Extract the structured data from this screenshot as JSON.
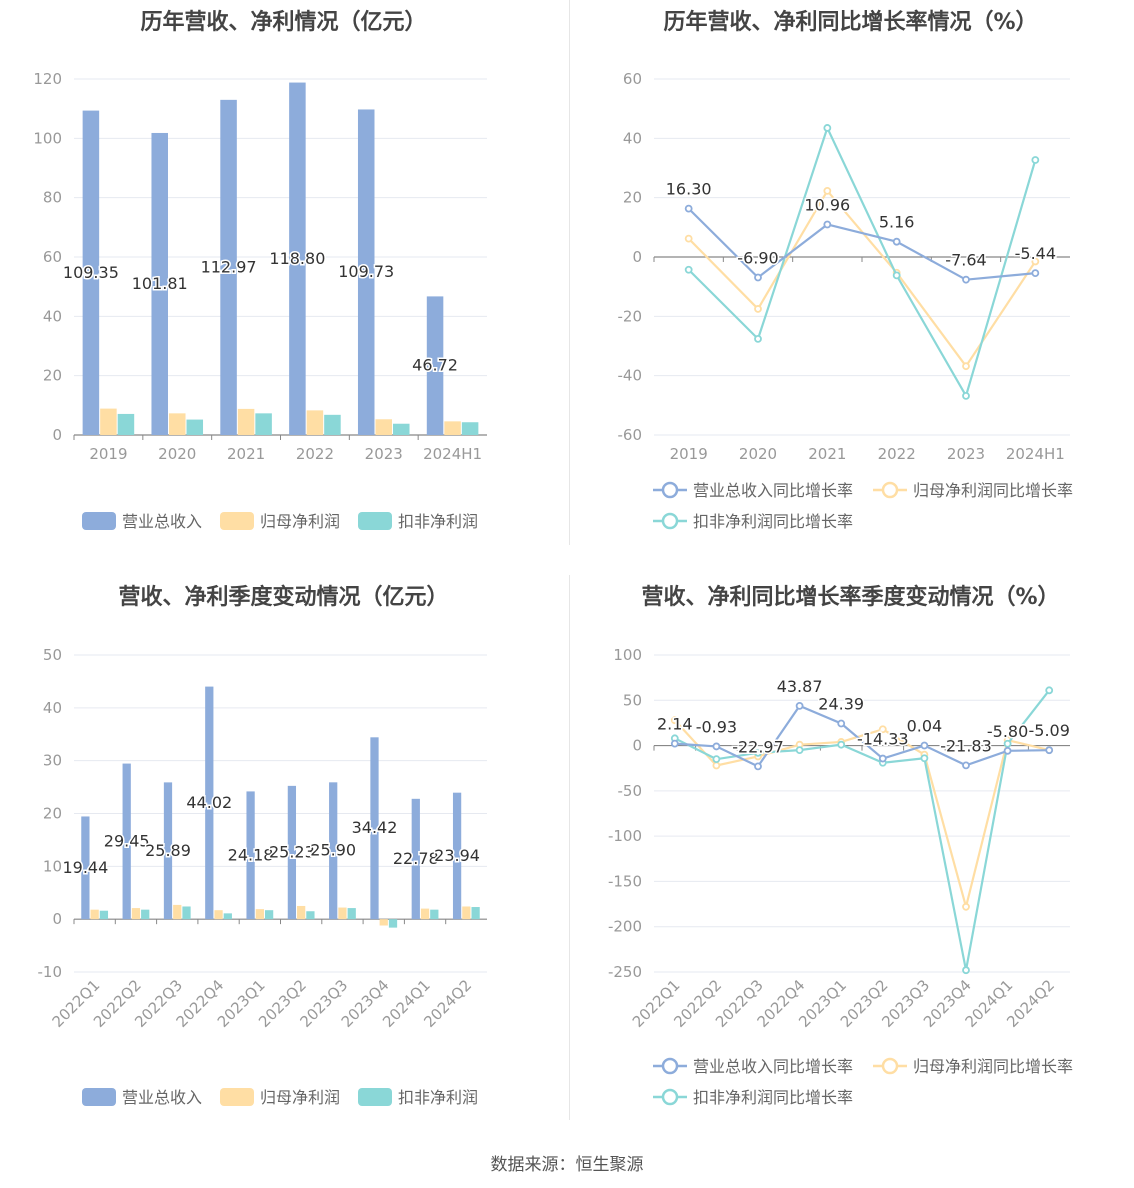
{
  "source_text": "数据来源：恒生聚源",
  "colors": {
    "revenue": "#8dacdb",
    "net_profit": "#ffdea4",
    "deducted": "#8ad7d7",
    "axis": "#999999",
    "grid": "#e6e9f0",
    "label": "#333333",
    "title": "#444444"
  },
  "chart_data": [
    {
      "type": "bar",
      "title": "历年营收、净利情况（亿元）",
      "categories": [
        "2019",
        "2020",
        "2021",
        "2022",
        "2023",
        "2024H1"
      ],
      "ylim": [
        0,
        120
      ],
      "yticks": [
        0,
        20,
        40,
        60,
        80,
        100,
        120
      ],
      "series": [
        {
          "name": "营业总收入",
          "values": [
            109.35,
            101.81,
            112.97,
            118.8,
            109.73,
            46.72
          ],
          "color": "#8dacdb",
          "show_labels": true
        },
        {
          "name": "归母净利润",
          "values": [
            8.9,
            7.3,
            8.8,
            8.3,
            5.3,
            4.6
          ],
          "color": "#ffdea4",
          "show_labels": false
        },
        {
          "name": "扣非净利润",
          "values": [
            7.1,
            5.2,
            7.3,
            6.8,
            3.8,
            4.3
          ],
          "color": "#8ad7d7",
          "show_labels": false
        }
      ],
      "legend": "bottom",
      "grid": true
    },
    {
      "type": "line",
      "title": "历年营收、净利同比增长率情况（%）",
      "categories": [
        "2019",
        "2020",
        "2021",
        "2022",
        "2023",
        "2024H1"
      ],
      "ylim": [
        -60,
        60
      ],
      "yticks": [
        -60,
        -40,
        -20,
        0,
        20,
        40,
        60
      ],
      "series": [
        {
          "name": "营业总收入同比增长率",
          "values": [
            16.3,
            -6.9,
            10.96,
            5.16,
            -7.64,
            -5.44
          ],
          "labels": [
            "16.30",
            "-6.90",
            "10.96",
            "5.16",
            "-7.64",
            "-5.44"
          ],
          "color": "#8dacdb",
          "show_labels": true
        },
        {
          "name": "归母净利润同比增长率",
          "values": [
            6.2,
            -17.5,
            22.3,
            -5.3,
            -36.8,
            -1.5
          ],
          "color": "#ffdea4",
          "show_labels": false
        },
        {
          "name": "扣非净利润同比增长率",
          "values": [
            -4.3,
            -27.6,
            43.5,
            -6.2,
            -46.8,
            32.7
          ],
          "color": "#8ad7d7",
          "show_labels": false
        }
      ],
      "legend": "bottom",
      "grid": true
    },
    {
      "type": "bar",
      "title": "营收、净利季度变动情况（亿元）",
      "categories": [
        "2022Q1",
        "2022Q2",
        "2022Q3",
        "2022Q4",
        "2023Q1",
        "2023Q2",
        "2023Q3",
        "2023Q4",
        "2024Q1",
        "2024Q2"
      ],
      "ylim": [
        -10,
        50
      ],
      "yticks": [
        -10,
        0,
        10,
        20,
        30,
        40,
        50
      ],
      "series": [
        {
          "name": "营业总收入",
          "values": [
            19.44,
            29.45,
            25.89,
            44.02,
            24.18,
            25.23,
            25.9,
            34.42,
            22.78,
            23.94
          ],
          "color": "#8dacdb",
          "show_labels": true
        },
        {
          "name": "归母净利润",
          "values": [
            1.8,
            2.1,
            2.7,
            1.7,
            1.9,
            2.5,
            2.2,
            -1.2,
            2.0,
            2.4
          ],
          "color": "#ffdea4",
          "show_labels": false
        },
        {
          "name": "扣非净利润",
          "values": [
            1.6,
            1.8,
            2.4,
            1.1,
            1.7,
            1.5,
            2.1,
            -1.6,
            1.8,
            2.3
          ],
          "color": "#8ad7d7",
          "show_labels": false
        }
      ],
      "legend": "bottom",
      "grid": true
    },
    {
      "type": "line",
      "title": "营收、净利同比增长率季度变动情况（%）",
      "categories": [
        "2022Q1",
        "2022Q2",
        "2022Q3",
        "2022Q4",
        "2023Q1",
        "2023Q2",
        "2023Q3",
        "2023Q4",
        "2024Q1",
        "2024Q2"
      ],
      "ylim": [
        -250,
        100
      ],
      "yticks": [
        -250,
        -200,
        -150,
        -100,
        -50,
        0,
        50,
        100
      ],
      "series": [
        {
          "name": "营业总收入同比增长率",
          "values": [
            2.14,
            -0.93,
            -22.97,
            43.87,
            24.39,
            -14.33,
            0.04,
            -21.83,
            -5.8,
            -5.09
          ],
          "labels": [
            "2.14",
            "-0.93",
            "-22.97",
            "43.87",
            "24.39",
            "-14.33",
            "0.04",
            "-21.83",
            "-5.80",
            "-5.09"
          ],
          "color": "#8dacdb",
          "show_labels": true
        },
        {
          "name": "归母净利润同比增长率",
          "values": [
            28.0,
            -22.0,
            -12.0,
            1.0,
            4.0,
            18.0,
            -10.0,
            -178.0,
            6.0,
            -5.0
          ],
          "color": "#ffdea4",
          "show_labels": false
        },
        {
          "name": "扣非净利润同比增长率",
          "values": [
            8.0,
            -15.0,
            -8.0,
            -5.0,
            1.0,
            -19.0,
            -14.0,
            -248.0,
            2.0,
            61.0
          ],
          "color": "#8ad7d7",
          "show_labels": false
        }
      ],
      "legend": "bottom",
      "grid": true
    }
  ]
}
